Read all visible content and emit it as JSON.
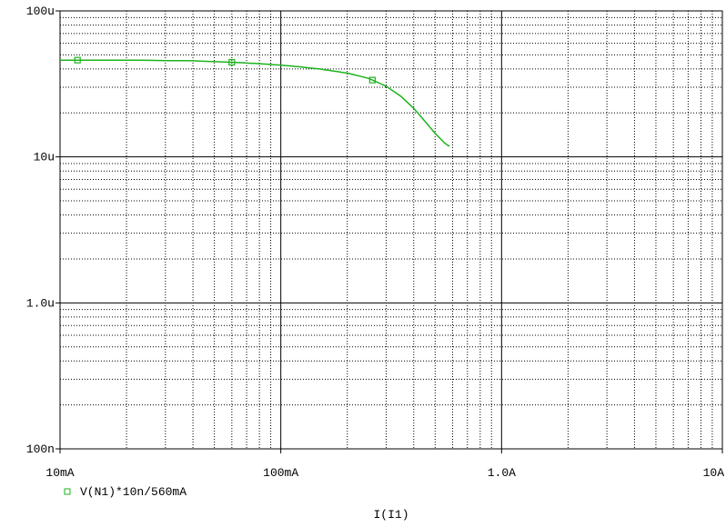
{
  "chart_data": {
    "type": "line",
    "xscale": "log",
    "yscale": "log",
    "xlim": [
      0.01,
      10
    ],
    "ylim": [
      1e-07,
      0.0001
    ],
    "xlabel": "I(I1)",
    "ylabel": "",
    "grid": true,
    "x_ticks": [
      {
        "value": 0.01,
        "label": "10mA"
      },
      {
        "value": 0.1,
        "label": "100mA"
      },
      {
        "value": 1,
        "label": "1.0A"
      },
      {
        "value": 10,
        "label": "10A"
      }
    ],
    "y_ticks": [
      {
        "value": 1e-07,
        "label": "100n"
      },
      {
        "value": 1e-06,
        "label": "1.0u"
      },
      {
        "value": 1e-05,
        "label": "10u"
      },
      {
        "value": 0.0001,
        "label": "100u"
      }
    ],
    "legend": {
      "placement": "bottom-left"
    },
    "series": [
      {
        "name": "V(N1)*10n/560mA",
        "color": "#1db31d",
        "x": [
          0.01,
          0.02,
          0.04,
          0.06,
          0.08,
          0.1,
          0.12,
          0.15,
          0.2,
          0.25,
          0.3,
          0.35,
          0.4,
          0.45,
          0.5,
          0.55,
          0.58
        ],
        "y": [
          4.6e-05,
          4.6e-05,
          4.55e-05,
          4.45e-05,
          4.35e-05,
          4.25e-05,
          4.15e-05,
          4e-05,
          3.75e-05,
          3.45e-05,
          3.05e-05,
          2.6e-05,
          2.15e-05,
          1.75e-05,
          1.45e-05,
          1.25e-05,
          1.18e-05
        ],
        "marker_x": [
          0.012,
          0.06,
          0.26
        ]
      }
    ]
  }
}
